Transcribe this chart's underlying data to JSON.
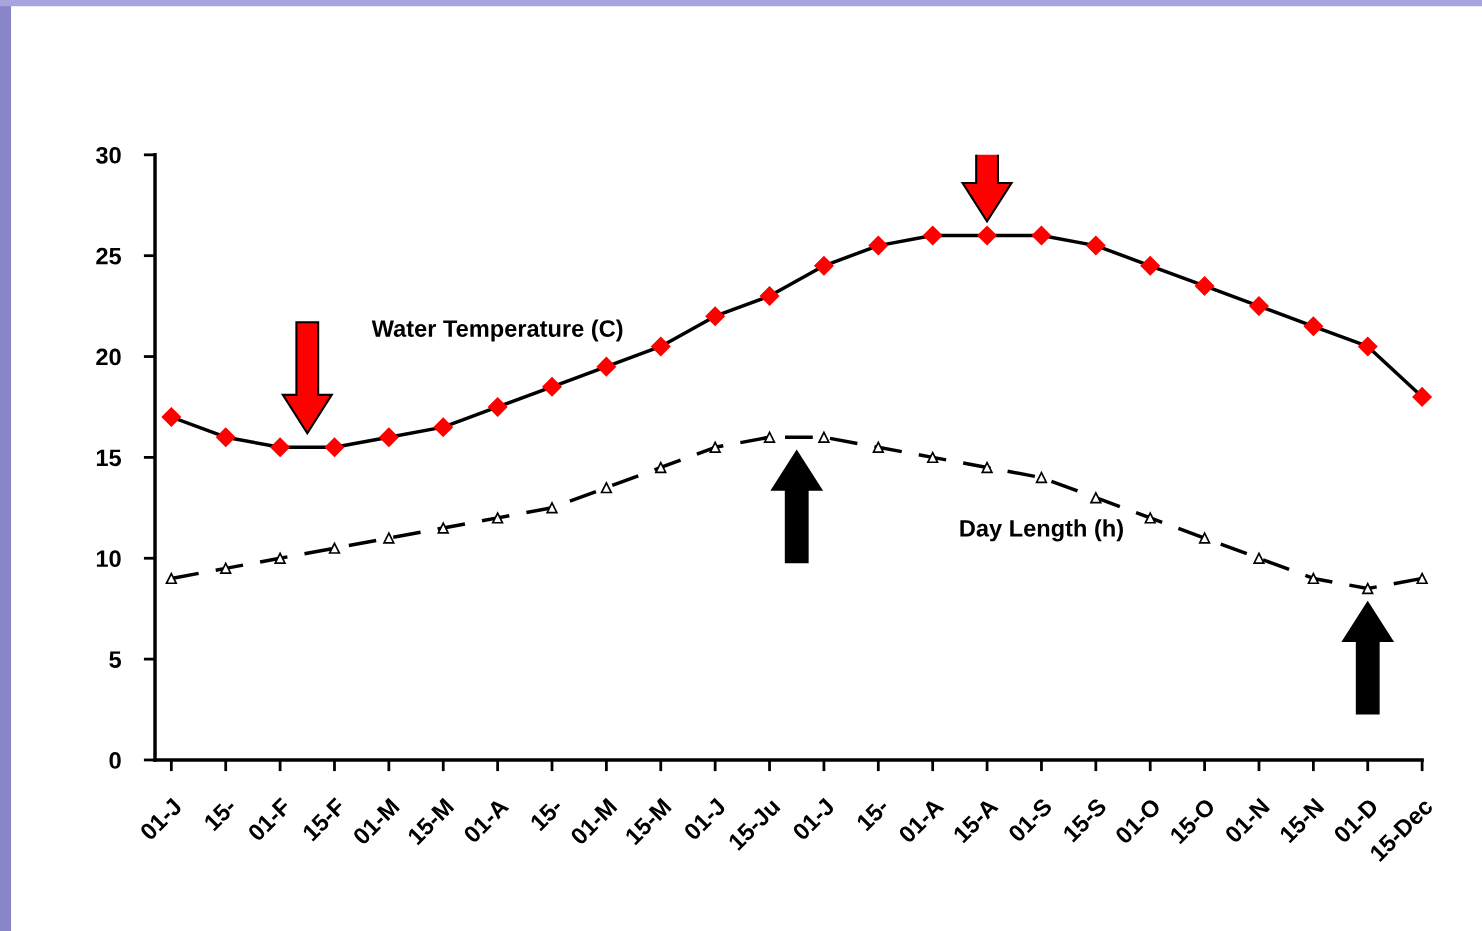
{
  "chart_data": {
    "type": "line",
    "categories": [
      "01-J",
      "15-",
      "01-F",
      "15-F",
      "01-M",
      "15-M",
      "01-A",
      "15-",
      "01-M",
      "15-M",
      "01-J",
      "15-Ju",
      "01-J",
      "15-",
      "01-A",
      "15-A",
      "01-S",
      "15-S",
      "01-O",
      "15-O",
      "01-N",
      "15-N",
      "01-D",
      "15-Dec"
    ],
    "series": [
      {
        "name": "Water Temperature (C)",
        "color": "#ff0000",
        "marker": "diamond",
        "line_style": "solid",
        "values": [
          17,
          16,
          15.5,
          15.5,
          16,
          16.5,
          17.5,
          18.5,
          19.5,
          20.5,
          22,
          23,
          24.5,
          25.5,
          26,
          26,
          26,
          25.5,
          24.5,
          23.5,
          22.5,
          21.5,
          20.5,
          18
        ]
      },
      {
        "name": "Day Length (h)",
        "color": "#000000",
        "marker": "triangle",
        "line_style": "dashed",
        "values": [
          9,
          9.5,
          10,
          10.5,
          11,
          11.5,
          12,
          12.5,
          13.5,
          14.5,
          15.5,
          16,
          16,
          15.5,
          15,
          14.5,
          14,
          13,
          12,
          11,
          10,
          9,
          8.5,
          9
        ]
      }
    ],
    "ylim": [
      0,
      30
    ],
    "yticks": [
      0,
      5,
      10,
      15,
      20,
      25,
      30
    ],
    "grid": false,
    "legend": false
  }
}
